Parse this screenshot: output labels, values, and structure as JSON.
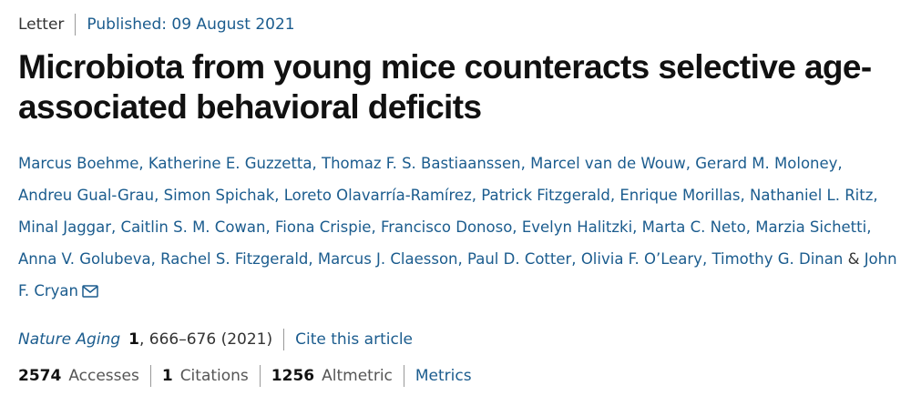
{
  "header": {
    "article_type": "Letter",
    "published": "Published: 09 August 2021"
  },
  "title": "Microbiota from young mice counteracts selective age-associated behavioral deficits",
  "authors": [
    "Marcus Boehme,",
    "Katherine E. Guzzetta,",
    "Thomaz F. S. Bastiaanssen,",
    "Marcel van de Wouw,",
    "Gerard M. Moloney,",
    "Andreu Gual-Grau,",
    "Simon Spichak,",
    "Loreto Olavarría-Ramírez,",
    "Patrick Fitzgerald,",
    "Enrique Morillas,",
    "Nathaniel L. Ritz,",
    "Minal Jaggar,",
    "Caitlin S. M. Cowan,",
    "Fiona Crispie,",
    "Francisco Donoso,",
    "Evelyn Halitzki,",
    "Marta C. Neto,",
    "Marzia Sichetti,",
    "Anna V. Golubeva,",
    "Rachel S. Fitzgerald,",
    "Marcus J. Claesson,",
    "Paul D. Cotter,",
    "Olivia F. O’Leary,",
    "Timothy G. Dinan",
    "&",
    "John F. Cryan"
  ],
  "citation": {
    "journal": "Nature Aging",
    "volume": "1",
    "pages_year": ", 666–676 (2021)",
    "cite_link": "Cite this article"
  },
  "metrics": {
    "accesses": {
      "value": 2574,
      "label": "Accesses"
    },
    "citations": {
      "value": 1,
      "label": "Citations"
    },
    "altmetric": {
      "value": 1256,
      "label": "Altmetric"
    },
    "link": "Metrics"
  }
}
